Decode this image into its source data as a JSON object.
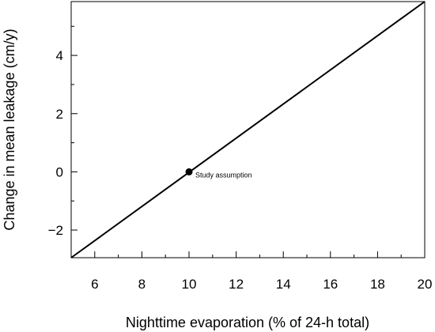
{
  "chart_data": {
    "type": "line",
    "title": "",
    "xlabel": "Nighttime evaporation (% of 24-h total)",
    "ylabel": "Change in mean leakage (cm/y)",
    "xlim": [
      5,
      20
    ],
    "ylim": [
      -2.95,
      5.85
    ],
    "x_major_ticks": [
      6,
      8,
      10,
      12,
      14,
      16,
      18,
      20
    ],
    "x_minor_ticks": [
      5,
      7,
      9,
      11,
      13,
      15,
      17,
      19
    ],
    "y_major_ticks": [
      -2,
      0,
      2,
      4
    ],
    "y_minor_ticks": [
      -1,
      1,
      3,
      5
    ],
    "x_tick_labels": [
      "6",
      "8",
      "10",
      "12",
      "14",
      "16",
      "18",
      "20"
    ],
    "y_tick_labels": [
      "−2",
      "0",
      "2",
      "4"
    ],
    "grid": false,
    "legend": "none",
    "series": [
      {
        "x": [
          5,
          20
        ],
        "y": [
          -2.95,
          5.85
        ],
        "color": "#000000"
      }
    ],
    "points": [
      {
        "x": 10,
        "y": 0,
        "label": "Study assumption"
      }
    ]
  }
}
